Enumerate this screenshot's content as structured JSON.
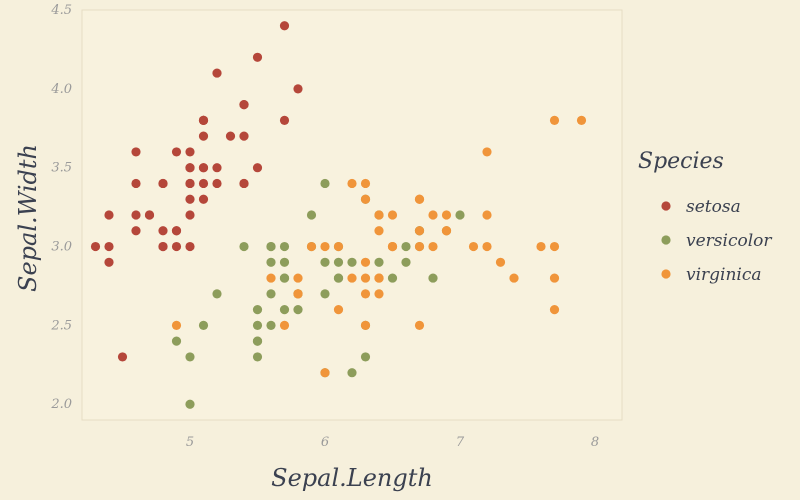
{
  "chart_data": {
    "type": "scatter",
    "xlabel": "Sepal.Length",
    "ylabel": "Sepal.Width",
    "xlim": [
      4.2,
      8.2
    ],
    "ylim": [
      1.9,
      4.5
    ],
    "x_ticks": [
      5,
      6,
      7,
      8
    ],
    "y_ticks": [
      2.0,
      2.5,
      3.0,
      3.5,
      4.0,
      4.5
    ],
    "x_tick_labels": [
      "5",
      "6",
      "7",
      "8"
    ],
    "y_tick_labels": [
      "2.0",
      "2.5",
      "3.0",
      "3.5",
      "4.0",
      "4.5"
    ],
    "grid": false,
    "legend": {
      "title": "Species",
      "placement": "right"
    },
    "series": [
      {
        "name": "setosa",
        "color": "#b5473a",
        "points": [
          [
            5.1,
            3.5
          ],
          [
            4.9,
            3.0
          ],
          [
            4.7,
            3.2
          ],
          [
            4.6,
            3.1
          ],
          [
            5.0,
            3.6
          ],
          [
            5.4,
            3.9
          ],
          [
            4.6,
            3.4
          ],
          [
            5.0,
            3.4
          ],
          [
            4.4,
            2.9
          ],
          [
            4.9,
            3.1
          ],
          [
            5.4,
            3.7
          ],
          [
            4.8,
            3.4
          ],
          [
            4.8,
            3.0
          ],
          [
            4.3,
            3.0
          ],
          [
            5.8,
            4.0
          ],
          [
            5.7,
            4.4
          ],
          [
            5.4,
            3.9
          ],
          [
            5.1,
            3.5
          ],
          [
            5.7,
            3.8
          ],
          [
            5.1,
            3.8
          ],
          [
            5.4,
            3.4
          ],
          [
            5.1,
            3.7
          ],
          [
            4.6,
            3.6
          ],
          [
            5.1,
            3.3
          ],
          [
            4.8,
            3.4
          ],
          [
            5.0,
            3.0
          ],
          [
            5.0,
            3.4
          ],
          [
            5.2,
            3.5
          ],
          [
            5.2,
            3.4
          ],
          [
            4.7,
            3.2
          ],
          [
            4.8,
            3.1
          ],
          [
            5.4,
            3.4
          ],
          [
            5.2,
            4.1
          ],
          [
            5.5,
            4.2
          ],
          [
            4.9,
            3.1
          ],
          [
            5.0,
            3.2
          ],
          [
            5.5,
            3.5
          ],
          [
            4.9,
            3.6
          ],
          [
            4.4,
            3.0
          ],
          [
            5.1,
            3.4
          ],
          [
            5.0,
            3.5
          ],
          [
            4.5,
            2.3
          ],
          [
            4.4,
            3.2
          ],
          [
            5.0,
            3.5
          ],
          [
            5.1,
            3.8
          ],
          [
            4.8,
            3.0
          ],
          [
            5.1,
            3.8
          ],
          [
            4.6,
            3.2
          ],
          [
            5.3,
            3.7
          ],
          [
            5.0,
            3.3
          ]
        ]
      },
      {
        "name": "versicolor",
        "color": "#8d9d5b",
        "points": [
          [
            7.0,
            3.2
          ],
          [
            6.4,
            3.2
          ],
          [
            6.9,
            3.1
          ],
          [
            5.5,
            2.3
          ],
          [
            6.5,
            2.8
          ],
          [
            5.7,
            2.8
          ],
          [
            6.3,
            3.3
          ],
          [
            4.9,
            2.4
          ],
          [
            6.6,
            2.9
          ],
          [
            5.2,
            2.7
          ],
          [
            5.0,
            2.0
          ],
          [
            5.9,
            3.0
          ],
          [
            6.0,
            2.2
          ],
          [
            6.1,
            2.9
          ],
          [
            5.6,
            2.9
          ],
          [
            6.7,
            3.1
          ],
          [
            5.6,
            3.0
          ],
          [
            5.8,
            2.7
          ],
          [
            6.2,
            2.2
          ],
          [
            5.6,
            2.5
          ],
          [
            5.9,
            3.2
          ],
          [
            6.1,
            2.8
          ],
          [
            6.3,
            2.5
          ],
          [
            6.1,
            2.8
          ],
          [
            6.4,
            2.9
          ],
          [
            6.6,
            3.0
          ],
          [
            6.8,
            2.8
          ],
          [
            6.7,
            3.0
          ],
          [
            6.0,
            2.9
          ],
          [
            5.7,
            2.6
          ],
          [
            5.5,
            2.4
          ],
          [
            5.5,
            2.4
          ],
          [
            5.8,
            2.7
          ],
          [
            6.0,
            2.7
          ],
          [
            5.4,
            3.0
          ],
          [
            6.0,
            3.4
          ],
          [
            6.7,
            3.1
          ],
          [
            6.3,
            2.3
          ],
          [
            5.6,
            3.0
          ],
          [
            5.5,
            2.5
          ],
          [
            5.5,
            2.6
          ],
          [
            6.1,
            3.0
          ],
          [
            5.8,
            2.6
          ],
          [
            5.0,
            2.3
          ],
          [
            5.6,
            2.7
          ],
          [
            5.7,
            3.0
          ],
          [
            5.7,
            2.9
          ],
          [
            6.2,
            2.9
          ],
          [
            5.1,
            2.5
          ],
          [
            5.7,
            2.8
          ]
        ]
      },
      {
        "name": "virginica",
        "color": "#f0953a",
        "points": [
          [
            6.3,
            3.3
          ],
          [
            5.8,
            2.7
          ],
          [
            7.1,
            3.0
          ],
          [
            6.3,
            2.9
          ],
          [
            6.5,
            3.0
          ],
          [
            7.6,
            3.0
          ],
          [
            4.9,
            2.5
          ],
          [
            7.3,
            2.9
          ],
          [
            6.7,
            2.5
          ],
          [
            7.2,
            3.6
          ],
          [
            6.5,
            3.2
          ],
          [
            6.4,
            2.7
          ],
          [
            6.8,
            3.0
          ],
          [
            5.7,
            2.5
          ],
          [
            5.8,
            2.8
          ],
          [
            6.4,
            3.2
          ],
          [
            6.5,
            3.0
          ],
          [
            7.7,
            3.8
          ],
          [
            7.7,
            2.6
          ],
          [
            6.0,
            2.2
          ],
          [
            6.9,
            3.2
          ],
          [
            5.6,
            2.8
          ],
          [
            7.7,
            2.8
          ],
          [
            6.3,
            2.7
          ],
          [
            6.7,
            3.3
          ],
          [
            7.2,
            3.2
          ],
          [
            6.2,
            2.8
          ],
          [
            6.1,
            3.0
          ],
          [
            6.4,
            2.8
          ],
          [
            7.2,
            3.0
          ],
          [
            7.4,
            2.8
          ],
          [
            7.9,
            3.8
          ],
          [
            6.4,
            2.8
          ],
          [
            6.3,
            2.8
          ],
          [
            6.1,
            2.6
          ],
          [
            7.7,
            3.0
          ],
          [
            6.3,
            3.4
          ],
          [
            6.4,
            3.1
          ],
          [
            6.0,
            3.0
          ],
          [
            6.9,
            3.1
          ],
          [
            6.7,
            3.1
          ],
          [
            6.9,
            3.1
          ],
          [
            5.8,
            2.7
          ],
          [
            6.8,
            3.2
          ],
          [
            6.7,
            3.3
          ],
          [
            6.7,
            3.0
          ],
          [
            6.3,
            2.5
          ],
          [
            6.5,
            3.0
          ],
          [
            6.2,
            3.4
          ],
          [
            5.9,
            3.0
          ]
        ]
      }
    ]
  }
}
